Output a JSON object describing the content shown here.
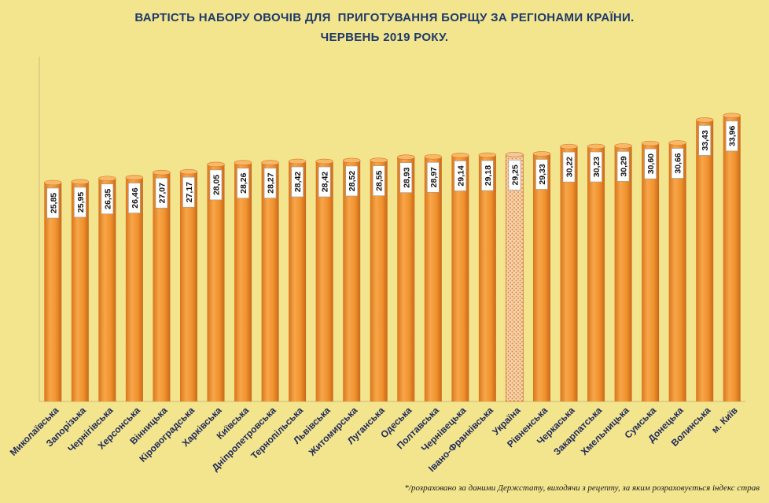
{
  "chart_data": {
    "type": "bar",
    "title": "ВАРТІСТЬ НАБОРУ ОВОЧІВ ДЛЯ  ПРИГОТУВАННЯ БОРЩУ ЗА РЕГІОНАМИ КРАЇНИ.",
    "subtitle": "ЧЕРВЕНЬ 2019 РОКУ.",
    "xlabel": "",
    "ylabel": "",
    "categories": [
      "Миколаївська",
      "Запорізька",
      "Чернігівська",
      "Херсонська",
      "Вінницька",
      "Кіровоградська",
      "Харківська",
      "Київська",
      "Дніпропетровська",
      "Тернопільська",
      "Львівська",
      "Житомирська",
      "Луганська",
      "Одеська",
      "Полтавська",
      "Чернівецька",
      "Івано-Франківська",
      "Україна",
      "Рівненська",
      "Черкаська",
      "Закарпатська",
      "Хмельницька",
      "Сумська",
      "Донецька",
      "Волинська",
      "м. Київ"
    ],
    "values": [
      25.85,
      25.95,
      26.35,
      26.46,
      27.07,
      27.17,
      28.05,
      28.26,
      28.27,
      28.42,
      28.42,
      28.52,
      28.55,
      28.93,
      28.97,
      29.14,
      29.18,
      29.25,
      29.33,
      30.22,
      30.23,
      30.29,
      30.6,
      30.66,
      33.43,
      33.96
    ],
    "value_labels": [
      "25,85",
      "25,95",
      "26,35",
      "26,46",
      "27,07",
      "27,17",
      "28,05",
      "28,26",
      "28,27",
      "28,42",
      "28,42",
      "28,52",
      "28,55",
      "28,93",
      "28,97",
      "29,14",
      "29,18",
      "29,25",
      "29,33",
      "30,22",
      "30,23",
      "30,29",
      "30,60",
      "30,66",
      "33,43",
      "33,96"
    ],
    "highlight_category": "Україна",
    "bar_color": "#f0922e",
    "highlight_pattern_color": "#d8a070",
    "background_color": "#f3e48e",
    "title_color": "#1e3a6b",
    "grid": false,
    "legend": "none"
  },
  "footnote": "*/розраховано  за даними Держстату, виходячи з рецепту, за яким розраховується індекс  страв"
}
